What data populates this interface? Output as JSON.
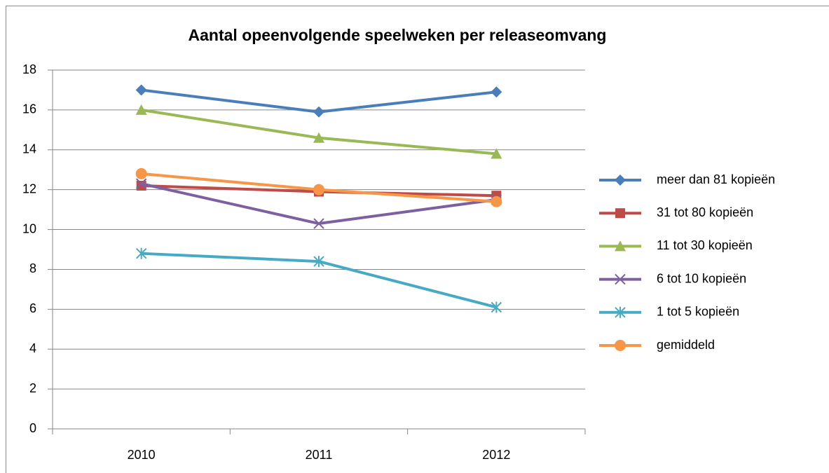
{
  "chart_data": {
    "type": "line",
    "title": "Aantal opeenvolgende speelweken per releaseomvang",
    "categories": [
      "2010",
      "2011",
      "2012"
    ],
    "ylim": [
      0,
      18
    ],
    "yticks": [
      0,
      2,
      4,
      6,
      8,
      10,
      12,
      14,
      16,
      18
    ],
    "grid": true,
    "legend": "right",
    "series": [
      {
        "name": "meer dan 81 kopieën",
        "color": "#4a7ebb",
        "marker": "diamond",
        "values": [
          17.0,
          15.9,
          16.9
        ]
      },
      {
        "name": "31 tot 80 kopieën",
        "color": "#be4b48",
        "marker": "square",
        "values": [
          12.2,
          11.9,
          11.7
        ]
      },
      {
        "name": "11 tot 30 kopieën",
        "color": "#98b954",
        "marker": "triangle",
        "values": [
          16.0,
          14.6,
          13.8
        ]
      },
      {
        "name": "6 tot 10 kopieën",
        "color": "#7d60a0",
        "marker": "x",
        "values": [
          12.3,
          10.3,
          11.5
        ]
      },
      {
        "name": "1 tot 5 kopieën",
        "color": "#46aac5",
        "marker": "star",
        "values": [
          8.8,
          8.4,
          6.1
        ]
      },
      {
        "name": "gemiddeld",
        "color": "#f79646",
        "marker": "circle",
        "values": [
          12.8,
          12.0,
          11.4
        ]
      }
    ]
  }
}
